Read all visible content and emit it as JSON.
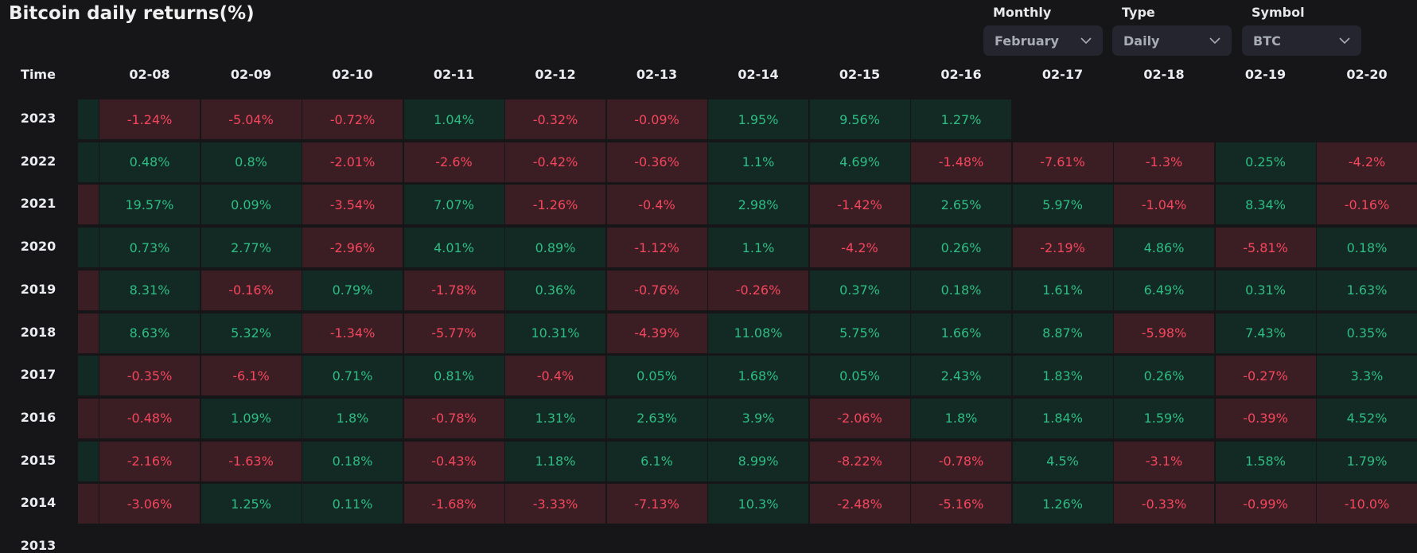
{
  "title": "Bitcoin daily returns(%)",
  "controls": [
    {
      "label": "Monthly",
      "value": "February"
    },
    {
      "label": "Type",
      "value": "Daily"
    },
    {
      "label": "Symbol",
      "value": "BTC"
    }
  ],
  "corner_label": "Time",
  "colors": {
    "positive_bg": "#122a23",
    "positive_text": "#2ebd85",
    "negative_bg": "#3a1e24",
    "negative_text": "#f6465d"
  },
  "columns": [
    "02-08",
    "02-09",
    "02-10",
    "02-11",
    "02-12",
    "02-13",
    "02-14",
    "02-15",
    "02-16",
    "02-17",
    "02-18",
    "02-19",
    "02-20"
  ],
  "rows": [
    {
      "year": "2023",
      "stub": "pos",
      "cells": [
        "-1.24%",
        "-5.04%",
        "-0.72%",
        "1.04%",
        "-0.32%",
        "-0.09%",
        "1.95%",
        "9.56%",
        "1.27%",
        "",
        "",
        "",
        ""
      ]
    },
    {
      "year": "2022",
      "stub": "pos",
      "cells": [
        "0.48%",
        "0.8%",
        "-2.01%",
        "-2.6%",
        "-0.42%",
        "-0.36%",
        "1.1%",
        "4.69%",
        "-1.48%",
        "-7.61%",
        "-1.3%",
        "0.25%",
        "-4.2%"
      ]
    },
    {
      "year": "2021",
      "stub": "neg",
      "cells": [
        "19.57%",
        "0.09%",
        "-3.54%",
        "7.07%",
        "-1.26%",
        "-0.4%",
        "2.98%",
        "-1.42%",
        "2.65%",
        "5.97%",
        "-1.04%",
        "8.34%",
        "-0.16%"
      ]
    },
    {
      "year": "2020",
      "stub": "pos",
      "cells": [
        "0.73%",
        "2.77%",
        "-2.96%",
        "4.01%",
        "0.89%",
        "-1.12%",
        "1.1%",
        "-4.2%",
        "0.26%",
        "-2.19%",
        "4.86%",
        "-5.81%",
        "0.18%"
      ]
    },
    {
      "year": "2019",
      "stub": "neg",
      "cells": [
        "8.31%",
        "-0.16%",
        "0.79%",
        "-1.78%",
        "0.36%",
        "-0.76%",
        "-0.26%",
        "0.37%",
        "0.18%",
        "1.61%",
        "6.49%",
        "0.31%",
        "1.63%"
      ]
    },
    {
      "year": "2018",
      "stub": "neg",
      "cells": [
        "8.63%",
        "5.32%",
        "-1.34%",
        "-5.77%",
        "10.31%",
        "-4.39%",
        "11.08%",
        "5.75%",
        "1.66%",
        "8.87%",
        "-5.98%",
        "7.43%",
        "0.35%"
      ]
    },
    {
      "year": "2017",
      "stub": "pos",
      "cells": [
        "-0.35%",
        "-6.1%",
        "0.71%",
        "0.81%",
        "-0.4%",
        "0.05%",
        "1.68%",
        "0.05%",
        "2.43%",
        "1.83%",
        "0.26%",
        "-0.27%",
        "3.3%"
      ]
    },
    {
      "year": "2016",
      "stub": "neg",
      "cells": [
        "-0.48%",
        "1.09%",
        "1.8%",
        "-0.78%",
        "1.31%",
        "2.63%",
        "3.9%",
        "-2.06%",
        "1.8%",
        "1.84%",
        "1.59%",
        "-0.39%",
        "4.52%"
      ]
    },
    {
      "year": "2015",
      "stub": "pos",
      "cells": [
        "-2.16%",
        "-1.63%",
        "0.18%",
        "-0.43%",
        "1.18%",
        "6.1%",
        "8.99%",
        "-8.22%",
        "-0.78%",
        "4.5%",
        "-3.1%",
        "1.58%",
        "1.79%"
      ]
    },
    {
      "year": "2014",
      "stub": "neg",
      "cells": [
        "-3.06%",
        "1.25%",
        "0.11%",
        "-1.68%",
        "-3.33%",
        "-7.13%",
        "10.3%",
        "-2.48%",
        "-5.16%",
        "1.26%",
        "-0.33%",
        "-0.99%",
        "-10.0%"
      ]
    },
    {
      "year": "2013",
      "stub": "none",
      "cells": [
        "",
        "",
        "",
        "",
        "",
        "",
        "",
        "",
        "",
        "",
        "",
        "",
        ""
      ]
    }
  ]
}
